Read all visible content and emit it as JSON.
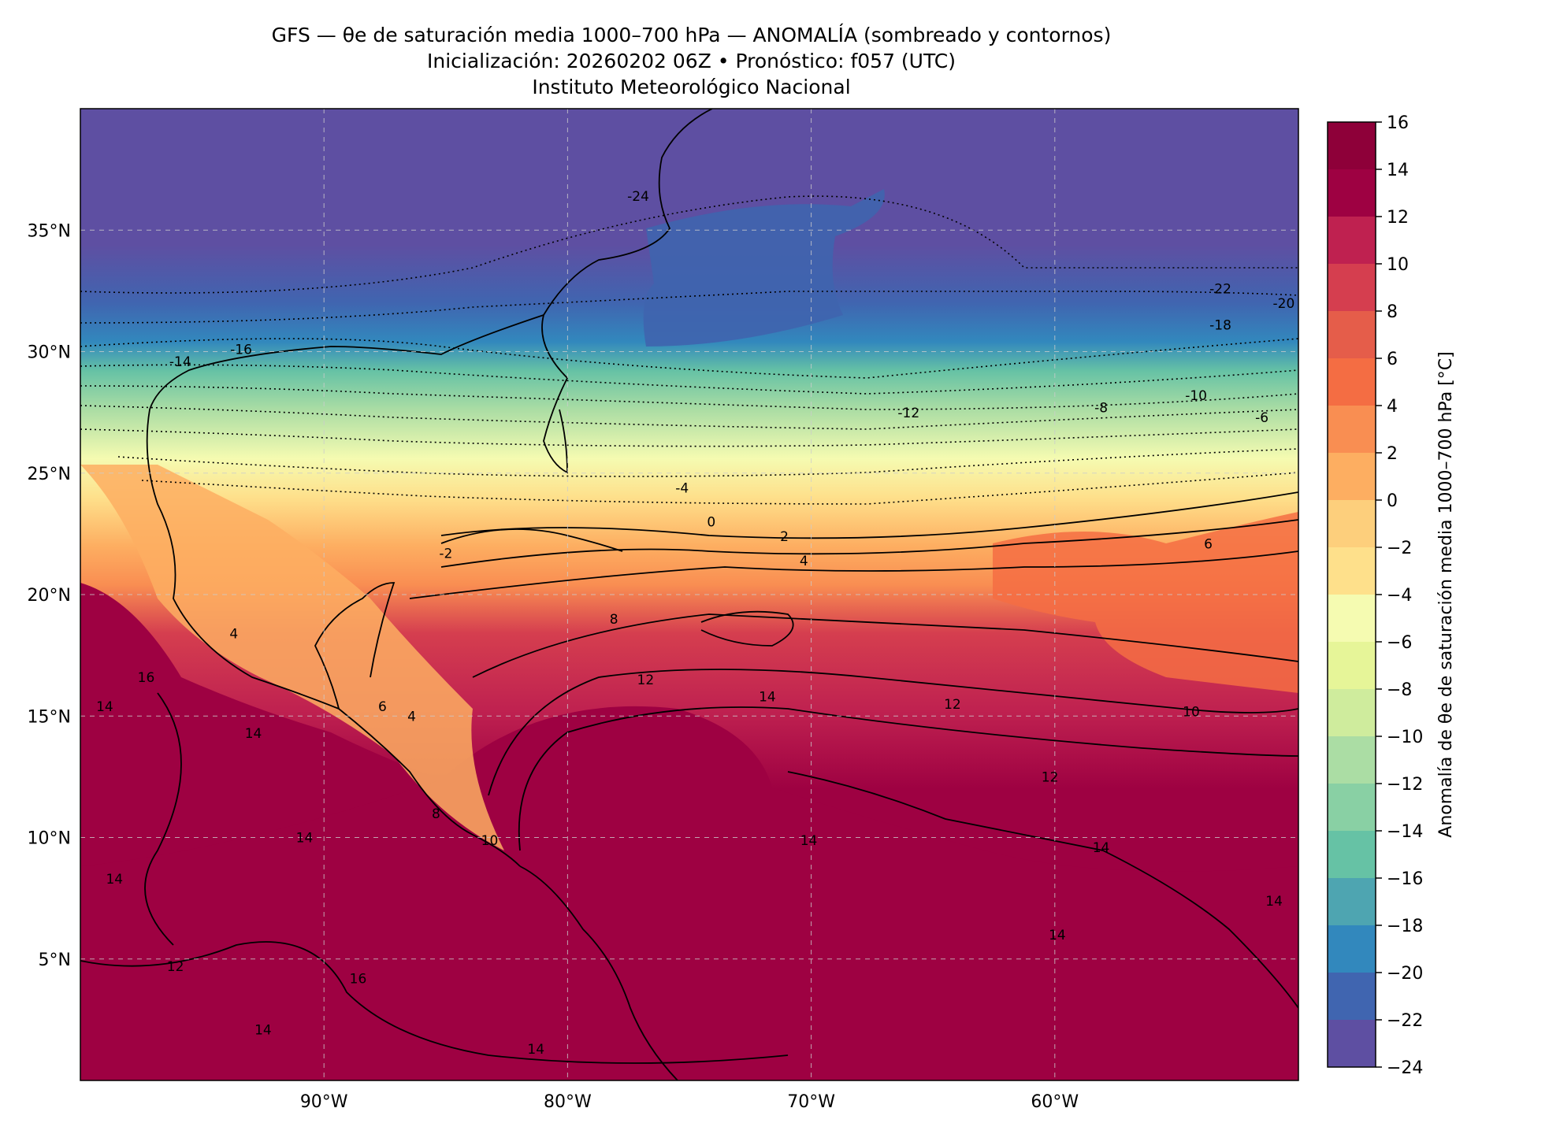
{
  "figure": {
    "title_line1": "GFS — θe de saturación media 1000–700 hPa — ANOMALÍA (sombreado y contornos)",
    "title_line2": "Inicialización: 20260202 06Z   •   Pronóstico: f057 (UTC)",
    "title_line3": "Instituto Meteorológico Nacional"
  },
  "map": {
    "lon_range": [
      -100,
      -50
    ],
    "lat_range": [
      0,
      40
    ],
    "lat_ticks": [
      {
        "value": 35,
        "label": "35°N"
      },
      {
        "value": 30,
        "label": "30°N"
      },
      {
        "value": 25,
        "label": "25°N"
      },
      {
        "value": 20,
        "label": "20°N"
      },
      {
        "value": 15,
        "label": "15°N"
      },
      {
        "value": 10,
        "label": "10°N"
      },
      {
        "value": 5,
        "label": "5°N"
      }
    ],
    "lon_ticks": [
      {
        "value": -90,
        "label": "90°W"
      },
      {
        "value": -80,
        "label": "80°W"
      },
      {
        "value": -70,
        "label": "70°W"
      },
      {
        "value": -60,
        "label": "60°W"
      }
    ],
    "gridlines": "dashed",
    "contour_labels": [
      {
        "text": "-24",
        "lon": -77.1,
        "lat": 36.2
      },
      {
        "text": "-22",
        "lon": -53.2,
        "lat": 32.4
      },
      {
        "text": "-20",
        "lon": -50.6,
        "lat": 31.8
      },
      {
        "text": "-18",
        "lon": -53.2,
        "lat": 30.9
      },
      {
        "text": "-16",
        "lon": -93.4,
        "lat": 29.9
      },
      {
        "text": "-14",
        "lon": -95.9,
        "lat": 29.4
      },
      {
        "text": "-12",
        "lon": -66.0,
        "lat": 27.3
      },
      {
        "text": "-10",
        "lon": -54.2,
        "lat": 28.0
      },
      {
        "text": "-8",
        "lon": -58.1,
        "lat": 27.5
      },
      {
        "text": "-6",
        "lon": -51.5,
        "lat": 27.1
      },
      {
        "text": "-4",
        "lon": -75.3,
        "lat": 24.2
      },
      {
        "text": "-2",
        "lon": -85.0,
        "lat": 21.5
      },
      {
        "text": "0",
        "lon": -74.1,
        "lat": 22.8
      },
      {
        "text": "2",
        "lon": -71.1,
        "lat": 22.2
      },
      {
        "text": "4",
        "lon": -70.3,
        "lat": 21.2
      },
      {
        "text": "6",
        "lon": -53.7,
        "lat": 21.9
      },
      {
        "text": "4",
        "lon": -93.7,
        "lat": 18.2
      },
      {
        "text": "8",
        "lon": -78.1,
        "lat": 18.8
      },
      {
        "text": "12",
        "lon": -76.8,
        "lat": 16.3
      },
      {
        "text": "6",
        "lon": -87.6,
        "lat": 15.2
      },
      {
        "text": "4",
        "lon": -86.4,
        "lat": 14.8
      },
      {
        "text": "10",
        "lon": -54.4,
        "lat": 15.0
      },
      {
        "text": "12",
        "lon": -64.2,
        "lat": 15.3
      },
      {
        "text": "14",
        "lon": -71.8,
        "lat": 15.6
      },
      {
        "text": "16",
        "lon": -97.3,
        "lat": 16.4
      },
      {
        "text": "14",
        "lon": -99.0,
        "lat": 15.2
      },
      {
        "text": "14",
        "lon": -92.9,
        "lat": 14.1
      },
      {
        "text": "12",
        "lon": -60.2,
        "lat": 12.3
      },
      {
        "text": "8",
        "lon": -85.4,
        "lat": 10.8
      },
      {
        "text": "10",
        "lon": -83.2,
        "lat": 9.7
      },
      {
        "text": "14",
        "lon": -90.8,
        "lat": 9.8
      },
      {
        "text": "14",
        "lon": -70.1,
        "lat": 9.7
      },
      {
        "text": "14",
        "lon": -58.1,
        "lat": 9.4
      },
      {
        "text": "14",
        "lon": -98.6,
        "lat": 8.1
      },
      {
        "text": "14",
        "lon": -51.0,
        "lat": 7.2
      },
      {
        "text": "14",
        "lon": -59.9,
        "lat": 5.8
      },
      {
        "text": "16",
        "lon": -88.6,
        "lat": 4.0
      },
      {
        "text": "12",
        "lon": -96.1,
        "lat": 4.5
      },
      {
        "text": "14",
        "lon": -92.5,
        "lat": 1.9
      },
      {
        "text": "14",
        "lon": -81.3,
        "lat": 1.1
      }
    ]
  },
  "colorbar": {
    "label": "Anomalía de θe de saturación media 1000–700 hPa [°C]",
    "levels": [
      -24,
      -22,
      -20,
      -18,
      -16,
      -14,
      -12,
      -10,
      -8,
      -6,
      -4,
      -2,
      0,
      2,
      4,
      6,
      8,
      10,
      12,
      14,
      16
    ],
    "tick_labels": [
      "−24",
      "−22",
      "−20",
      "−18",
      "−16",
      "−14",
      "−12",
      "−10",
      "−8",
      "−6",
      "−4",
      "−2",
      "0",
      "2",
      "4",
      "6",
      "8",
      "10",
      "12",
      "14",
      "16"
    ],
    "colors": [
      "#5e4fa2",
      "#4065b0",
      "#3288bd",
      "#4ea5b1",
      "#66c2a5",
      "#89d0a4",
      "#abdda4",
      "#cfec9d",
      "#e6f598",
      "#f5fbb1",
      "#fee08b",
      "#fdcf7c",
      "#fdae61",
      "#f98e52",
      "#f46d43",
      "#e55d4a",
      "#d53e4f",
      "#bf2150",
      "#9e0142",
      "#8e0039"
    ]
  }
}
